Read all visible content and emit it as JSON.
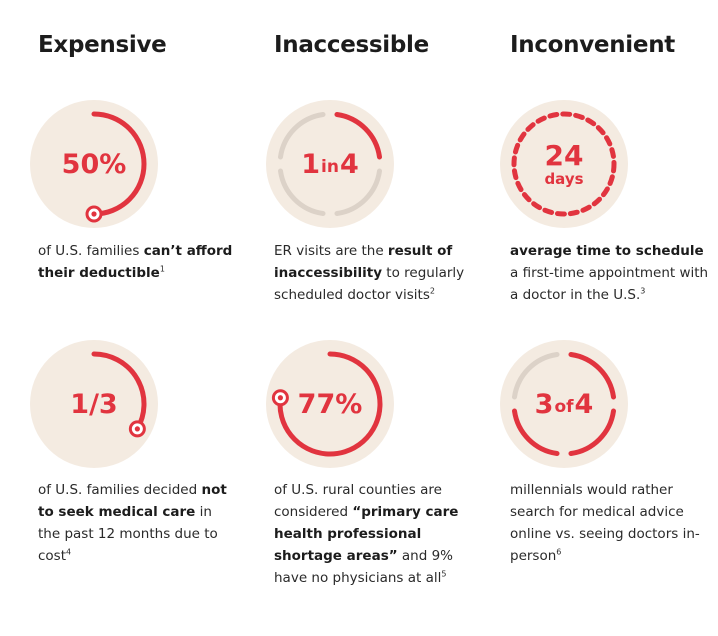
{
  "headings": [
    "Expensive",
    "Inaccessible",
    "Inconvenient"
  ],
  "accent_color": "#e1343f",
  "circle_color": "#f4ebe1",
  "track_color": "#dcd2c8",
  "stats": [
    {
      "value": "50%",
      "indicator": {
        "type": "arc",
        "fraction": 0.5
      },
      "caption": [
        {
          "text": "of U.S. families "
        },
        {
          "text": "can’t afford their deductible",
          "bold": true
        },
        {
          "text": "1",
          "sup": true
        }
      ]
    },
    {
      "value_parts": [
        "1",
        "in",
        "4"
      ],
      "indicator": {
        "type": "segments",
        "total": 4,
        "highlighted": 1
      },
      "caption": [
        {
          "text": "ER visits are the "
        },
        {
          "text": "result of inaccessibility",
          "bold": true
        },
        {
          "text": " to regularly scheduled doctor visits"
        },
        {
          "text": "2",
          "sup": true
        }
      ]
    },
    {
      "value": "24",
      "unit": "days",
      "indicator": {
        "type": "dotted",
        "fraction": 1
      },
      "caption": [
        {
          "text": "average time to schedule",
          "bold": true
        },
        {
          "text": " a first-time appointment with a doctor in the U.S."
        },
        {
          "text": "3",
          "sup": true
        }
      ]
    },
    {
      "value": "1/3",
      "indicator": {
        "type": "arc",
        "fraction": 0.333
      },
      "caption": [
        {
          "text": "of U.S. families decided "
        },
        {
          "text": "not to seek medical care",
          "bold": true
        },
        {
          "text": " in the past 12 months due to cost"
        },
        {
          "text": "4",
          "sup": true
        }
      ]
    },
    {
      "value": "77%",
      "indicator": {
        "type": "arc",
        "fraction": 0.77
      },
      "caption": [
        {
          "text": "of U.S. rural counties are considered "
        },
        {
          "text": "“primary care health professional shortage areas”",
          "bold": true
        },
        {
          "text": " and 9% have no physicians at all"
        },
        {
          "text": "5",
          "sup": true
        }
      ]
    },
    {
      "value_parts": [
        "3",
        "of",
        "4"
      ],
      "indicator": {
        "type": "segments",
        "total": 4,
        "highlighted": 3
      },
      "caption": [
        {
          "text": "millennials would rather search for medical advice online vs. seeing doctors in-person"
        },
        {
          "text": "6",
          "sup": true
        }
      ]
    }
  ]
}
